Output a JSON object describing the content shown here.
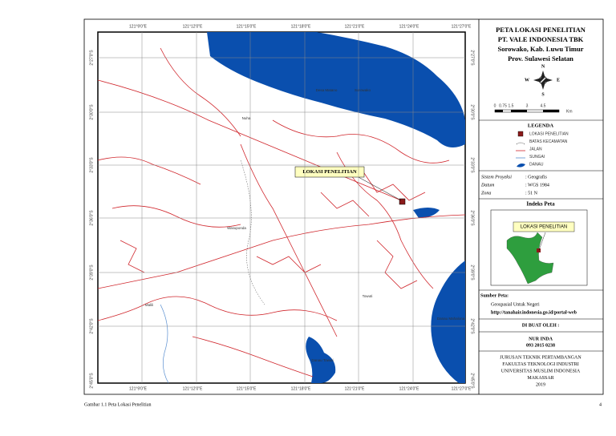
{
  "map": {
    "grid_top": [
      "121°9'0\"E",
      "121°12'0\"E",
      "121°15'0\"E",
      "121°18'0\"E",
      "121°21'0\"E",
      "121°24'0\"E",
      "121°27'0\"E"
    ],
    "grid_bottom": [
      "121°9'0\"E",
      "121°12'0\"E",
      "121°15'0\"E",
      "121°18'0\"E",
      "121°21'0\"E",
      "121°24'0\"E",
      "121°27'0\"E"
    ],
    "grid_left": [
      "2°27'0\"S",
      "2°30'0\"S",
      "2°33'0\"S",
      "2°36'0\"S",
      "2°39'0\"S",
      "2°42'0\"S",
      "2°45'0\"S"
    ],
    "grid_right": [
      "2°27'0\"S",
      "2°30'0\"S",
      "2°33'0\"S",
      "2°36'0\"S",
      "2°39'0\"S",
      "2°42'0\"S",
      "2°45'0\"S"
    ],
    "places": [
      "Nuha",
      "Desa Matano",
      "Sorowako",
      "Wasuponda",
      "Towuti",
      "Malili",
      "Danau Towuti",
      "Danau Mahalona"
    ],
    "callout": "LOKASI PENELITIAN"
  },
  "panel": {
    "title": [
      "PETA LOKASI PENELITIAN",
      "PT. VALE INDONESIA TBK",
      "Sorowako, Kab. Luwu Timur",
      "Prov. Sulawesi Selatan"
    ],
    "compass": {
      "n": "N",
      "s": "S",
      "e": "E",
      "w": "W"
    },
    "scale": {
      "ticks": [
        "0",
        "0.75",
        "1.5",
        "3",
        "4.5"
      ],
      "unit": "Km"
    },
    "legend": {
      "title": "LEGENDA",
      "items": [
        "LOKASI PENELITIAN",
        "BATAS KECAMATAN",
        "JALAN",
        "SUNGAI",
        "DANAU"
      ]
    },
    "projection": [
      [
        "Sistem Proyeksi",
        ": Geografis"
      ],
      [
        "Datum",
        ": WGS 1984"
      ],
      [
        "Zona",
        ": 51 N"
      ]
    ],
    "index": {
      "title": "Indeks Peta",
      "callout": "LOKASI PENELITIAN"
    },
    "source": {
      "title": "Sumber Peta:",
      "lines": [
        "Geospasial Untuk Negeri",
        "http://tanahair.indonesia.go.id/portal-web"
      ]
    },
    "author": {
      "title": "DI BUAT OLEH :",
      "name": "NUR INDA",
      "id": "093 2015 0238"
    },
    "institution": [
      "JURUSAN TEKNIK PERTAMBANGAN",
      "FAKULTAS TEKNOLOGI INDUSTRI",
      "UNIVERSITAS MUSLIM INDONESIA",
      "MAKASSAR",
      "2019"
    ]
  },
  "footer": {
    "caption": "Gambar 1.1 Peta Lokasi Penelitian",
    "page": "4"
  }
}
